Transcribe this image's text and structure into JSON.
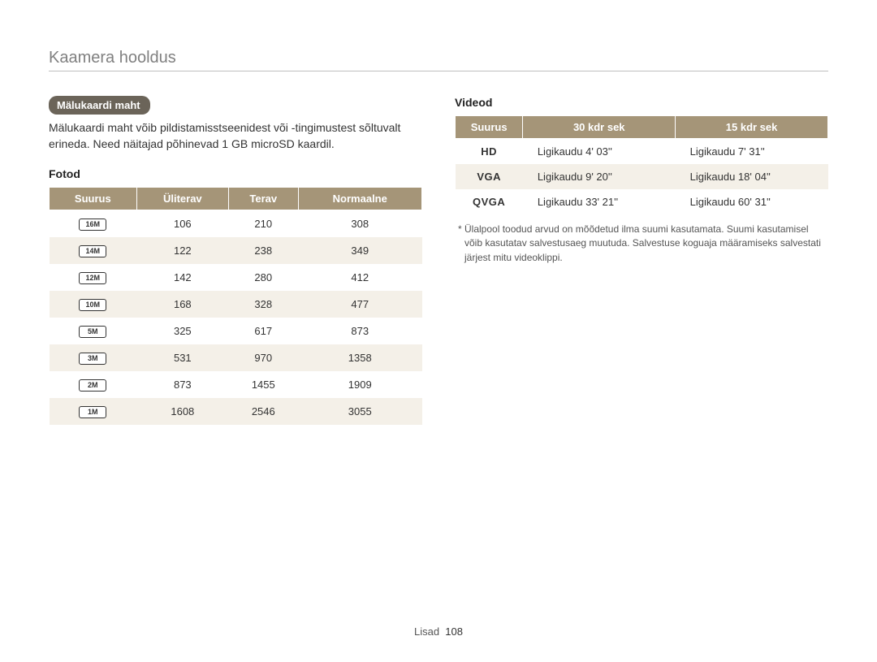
{
  "page": {
    "title": "Kaamera hooldus",
    "footer_section": "Lisad",
    "footer_page": "108"
  },
  "left": {
    "chip_label": "Mälukaardi maht",
    "body_text": "Mälukaardi maht võib pildistamisstseenidest või -tingimustest sõltuvalt erineda. Need näitajad põhinevad 1 GB microSD kaardil.",
    "photos_heading": "Fotod",
    "photos_table": {
      "columns": [
        "Suurus",
        "Üliterav",
        "Terav",
        "Normaalne"
      ],
      "rows": [
        {
          "size_label": "16M",
          "values": [
            "106",
            "210",
            "308"
          ]
        },
        {
          "size_label": "14M",
          "values": [
            "122",
            "238",
            "349"
          ]
        },
        {
          "size_label": "12M",
          "values": [
            "142",
            "280",
            "412"
          ]
        },
        {
          "size_label": "10M",
          "values": [
            "168",
            "328",
            "477"
          ]
        },
        {
          "size_label": "5M",
          "values": [
            "325",
            "617",
            "873"
          ]
        },
        {
          "size_label": "3M",
          "values": [
            "531",
            "970",
            "1358"
          ]
        },
        {
          "size_label": "2M",
          "values": [
            "873",
            "1455",
            "1909"
          ]
        },
        {
          "size_label": "1M",
          "values": [
            "1608",
            "2546",
            "3055"
          ]
        }
      ]
    }
  },
  "right": {
    "videos_heading": "Videod",
    "videos_table": {
      "columns": [
        "Suurus",
        "30 kdr sek",
        "15 kdr sek"
      ],
      "rows": [
        {
          "size_label": "HD",
          "values": [
            "Ligikaudu 4' 03''",
            "Ligikaudu 7' 31''"
          ]
        },
        {
          "size_label": "VGA",
          "values": [
            "Ligikaudu 9' 20''",
            "Ligikaudu 18' 04''"
          ]
        },
        {
          "size_label": "QVGA",
          "values": [
            "Ligikaudu 33' 21''",
            "Ligikaudu 60' 31''"
          ]
        }
      ]
    },
    "footnote": "* Ülalpool toodud arvud on mõõdetud ilma suumi kasutamata. Suumi kasutamisel võib kasutatav salvestusaeg muutuda. Salvestuse koguaja määramiseks salvestati järjest mitu videoklippi."
  },
  "colors": {
    "header_bg": "#a59578",
    "header_text": "#ffffff",
    "row_alt_bg": "#f4f0e8",
    "chip_bg": "#6b6459",
    "title_color": "#808080",
    "rule_color": "#bfbfbf"
  }
}
